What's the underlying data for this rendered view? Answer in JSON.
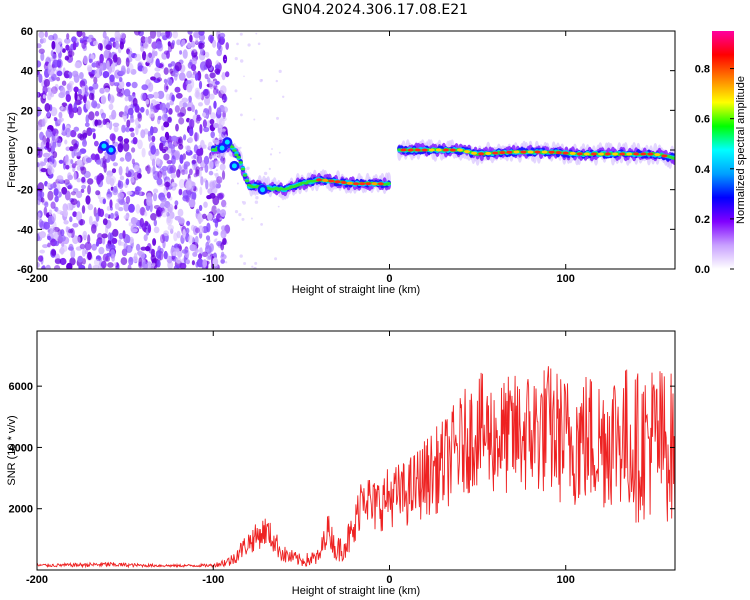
{
  "title": "GN04.2024.306.17.08.E21",
  "chart_data": [
    {
      "type": "heatmap",
      "xlabel": "Height of straight line (km)",
      "ylabel": "Frequency (Hz)",
      "xlim": [
        -200,
        162
      ],
      "ylim": [
        -60,
        60
      ],
      "x_ticks": [
        -200,
        -100,
        0,
        100
      ],
      "y_ticks": [
        60,
        40,
        20,
        0,
        -20,
        -40,
        -60
      ],
      "colorbar": {
        "label": "Normalized spectral amplitude",
        "range": [
          0,
          0.95
        ],
        "ticks": [
          0.0,
          0.2,
          0.4,
          0.6,
          0.8
        ],
        "colormap": [
          "#ffffff",
          "#c8a0ff",
          "#8000ff",
          "#0000ff",
          "#00a0ff",
          "#00ffff",
          "#00ff00",
          "#ffff00",
          "#ff8000",
          "#ff0000",
          "#ff00a0"
        ]
      },
      "ridge": [
        {
          "x": -100,
          "y": 0
        },
        {
          "x": -90,
          "y": 3
        },
        {
          "x": -85,
          "y": -5
        },
        {
          "x": -80,
          "y": -18
        },
        {
          "x": -70,
          "y": -19
        },
        {
          "x": -60,
          "y": -20
        },
        {
          "x": -50,
          "y": -17
        },
        {
          "x": -40,
          "y": -15
        },
        {
          "x": -30,
          "y": -16
        },
        {
          "x": -20,
          "y": -17
        },
        {
          "x": -10,
          "y": -17
        },
        {
          "x": 0,
          "y": -17
        },
        {
          "x": 5,
          "y": 0
        },
        {
          "x": 20,
          "y": 0
        },
        {
          "x": 40,
          "y": 0
        },
        {
          "x": 50,
          "y": -2
        },
        {
          "x": 70,
          "y": -1
        },
        {
          "x": 90,
          "y": -1
        },
        {
          "x": 110,
          "y": -2
        },
        {
          "x": 130,
          "y": -2
        },
        {
          "x": 150,
          "y": -2
        },
        {
          "x": 162,
          "y": -4
        }
      ]
    },
    {
      "type": "line",
      "xlabel": "Height of straight line (km)",
      "ylabel": "SNR (10 * v/v)",
      "xlim": [
        -200,
        162
      ],
      "ylim": [
        0,
        7800
      ],
      "x_ticks": [
        -200,
        -100,
        0,
        100
      ],
      "y_ticks": [
        2000,
        4000,
        6000
      ],
      "series": [
        {
          "color": "#ee2222",
          "x": [
            -200,
            -180,
            -160,
            -140,
            -120,
            -100,
            -90,
            -80,
            -70,
            -60,
            -50,
            -40,
            -35,
            -30,
            -20,
            -15,
            -10,
            0,
            10,
            20,
            30,
            40,
            50,
            60,
            70,
            80,
            90,
            100,
            110,
            120,
            130,
            140,
            150,
            160
          ],
          "y": [
            150,
            160,
            180,
            150,
            140,
            150,
            300,
            900,
            1300,
            500,
            300,
            400,
            1400,
            600,
            1200,
            2800,
            2000,
            2400,
            2500,
            3000,
            3400,
            4000,
            4600,
            4300,
            4400,
            4500,
            4600,
            4200,
            4300,
            4200,
            4500,
            4000,
            4300,
            4000
          ],
          "spread": [
            50,
            60,
            80,
            50,
            40,
            50,
            200,
            400,
            500,
            300,
            200,
            300,
            500,
            400,
            700,
            1000,
            900,
            1000,
            1100,
            1300,
            1500,
            1700,
            1900,
            1900,
            2000,
            2100,
            2200,
            2200,
            2300,
            2300,
            2400,
            2500,
            2600,
            2500
          ]
        }
      ]
    }
  ]
}
